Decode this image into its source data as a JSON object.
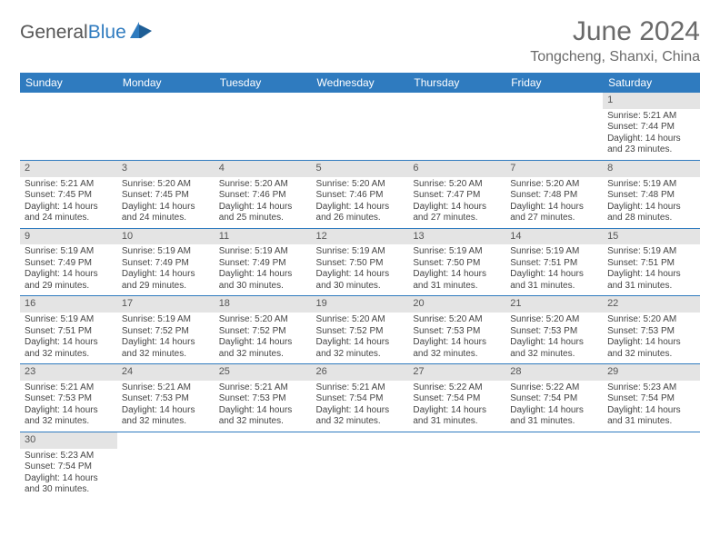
{
  "brand": {
    "part1": "General",
    "part2": "Blue"
  },
  "title": "June 2024",
  "location": "Tongcheng, Shanxi, China",
  "weekdays": [
    "Sunday",
    "Monday",
    "Tuesday",
    "Wednesday",
    "Thursday",
    "Friday",
    "Saturday"
  ],
  "colors": {
    "header_bg": "#2f7bbf",
    "header_text": "#ffffff",
    "daynum_bg": "#e4e4e4",
    "row_divider": "#2f7bbf",
    "text": "#444444",
    "title": "#6a6a6a"
  },
  "typography": {
    "title_fontsize": 30,
    "location_fontsize": 16,
    "weekday_fontsize": 12,
    "daynum_fontsize": 11,
    "body_fontsize": 10
  },
  "weeks": [
    [
      null,
      null,
      null,
      null,
      null,
      null,
      {
        "n": "1",
        "sunrise": "5:21 AM",
        "sunset": "7:44 PM",
        "dl": "14 hours and 23 minutes."
      }
    ],
    [
      {
        "n": "2",
        "sunrise": "5:21 AM",
        "sunset": "7:45 PM",
        "dl": "14 hours and 24 minutes."
      },
      {
        "n": "3",
        "sunrise": "5:20 AM",
        "sunset": "7:45 PM",
        "dl": "14 hours and 24 minutes."
      },
      {
        "n": "4",
        "sunrise": "5:20 AM",
        "sunset": "7:46 PM",
        "dl": "14 hours and 25 minutes."
      },
      {
        "n": "5",
        "sunrise": "5:20 AM",
        "sunset": "7:46 PM",
        "dl": "14 hours and 26 minutes."
      },
      {
        "n": "6",
        "sunrise": "5:20 AM",
        "sunset": "7:47 PM",
        "dl": "14 hours and 27 minutes."
      },
      {
        "n": "7",
        "sunrise": "5:20 AM",
        "sunset": "7:48 PM",
        "dl": "14 hours and 27 minutes."
      },
      {
        "n": "8",
        "sunrise": "5:19 AM",
        "sunset": "7:48 PM",
        "dl": "14 hours and 28 minutes."
      }
    ],
    [
      {
        "n": "9",
        "sunrise": "5:19 AM",
        "sunset": "7:49 PM",
        "dl": "14 hours and 29 minutes."
      },
      {
        "n": "10",
        "sunrise": "5:19 AM",
        "sunset": "7:49 PM",
        "dl": "14 hours and 29 minutes."
      },
      {
        "n": "11",
        "sunrise": "5:19 AM",
        "sunset": "7:49 PM",
        "dl": "14 hours and 30 minutes."
      },
      {
        "n": "12",
        "sunrise": "5:19 AM",
        "sunset": "7:50 PM",
        "dl": "14 hours and 30 minutes."
      },
      {
        "n": "13",
        "sunrise": "5:19 AM",
        "sunset": "7:50 PM",
        "dl": "14 hours and 31 minutes."
      },
      {
        "n": "14",
        "sunrise": "5:19 AM",
        "sunset": "7:51 PM",
        "dl": "14 hours and 31 minutes."
      },
      {
        "n": "15",
        "sunrise": "5:19 AM",
        "sunset": "7:51 PM",
        "dl": "14 hours and 31 minutes."
      }
    ],
    [
      {
        "n": "16",
        "sunrise": "5:19 AM",
        "sunset": "7:51 PM",
        "dl": "14 hours and 32 minutes."
      },
      {
        "n": "17",
        "sunrise": "5:19 AM",
        "sunset": "7:52 PM",
        "dl": "14 hours and 32 minutes."
      },
      {
        "n": "18",
        "sunrise": "5:20 AM",
        "sunset": "7:52 PM",
        "dl": "14 hours and 32 minutes."
      },
      {
        "n": "19",
        "sunrise": "5:20 AM",
        "sunset": "7:52 PM",
        "dl": "14 hours and 32 minutes."
      },
      {
        "n": "20",
        "sunrise": "5:20 AM",
        "sunset": "7:53 PM",
        "dl": "14 hours and 32 minutes."
      },
      {
        "n": "21",
        "sunrise": "5:20 AM",
        "sunset": "7:53 PM",
        "dl": "14 hours and 32 minutes."
      },
      {
        "n": "22",
        "sunrise": "5:20 AM",
        "sunset": "7:53 PM",
        "dl": "14 hours and 32 minutes."
      }
    ],
    [
      {
        "n": "23",
        "sunrise": "5:21 AM",
        "sunset": "7:53 PM",
        "dl": "14 hours and 32 minutes."
      },
      {
        "n": "24",
        "sunrise": "5:21 AM",
        "sunset": "7:53 PM",
        "dl": "14 hours and 32 minutes."
      },
      {
        "n": "25",
        "sunrise": "5:21 AM",
        "sunset": "7:53 PM",
        "dl": "14 hours and 32 minutes."
      },
      {
        "n": "26",
        "sunrise": "5:21 AM",
        "sunset": "7:54 PM",
        "dl": "14 hours and 32 minutes."
      },
      {
        "n": "27",
        "sunrise": "5:22 AM",
        "sunset": "7:54 PM",
        "dl": "14 hours and 31 minutes."
      },
      {
        "n": "28",
        "sunrise": "5:22 AM",
        "sunset": "7:54 PM",
        "dl": "14 hours and 31 minutes."
      },
      {
        "n": "29",
        "sunrise": "5:23 AM",
        "sunset": "7:54 PM",
        "dl": "14 hours and 31 minutes."
      }
    ],
    [
      {
        "n": "30",
        "sunrise": "5:23 AM",
        "sunset": "7:54 PM",
        "dl": "14 hours and 30 minutes."
      },
      null,
      null,
      null,
      null,
      null,
      null
    ]
  ],
  "labels": {
    "sunrise": "Sunrise: ",
    "sunset": "Sunset: ",
    "daylight": "Daylight: "
  }
}
